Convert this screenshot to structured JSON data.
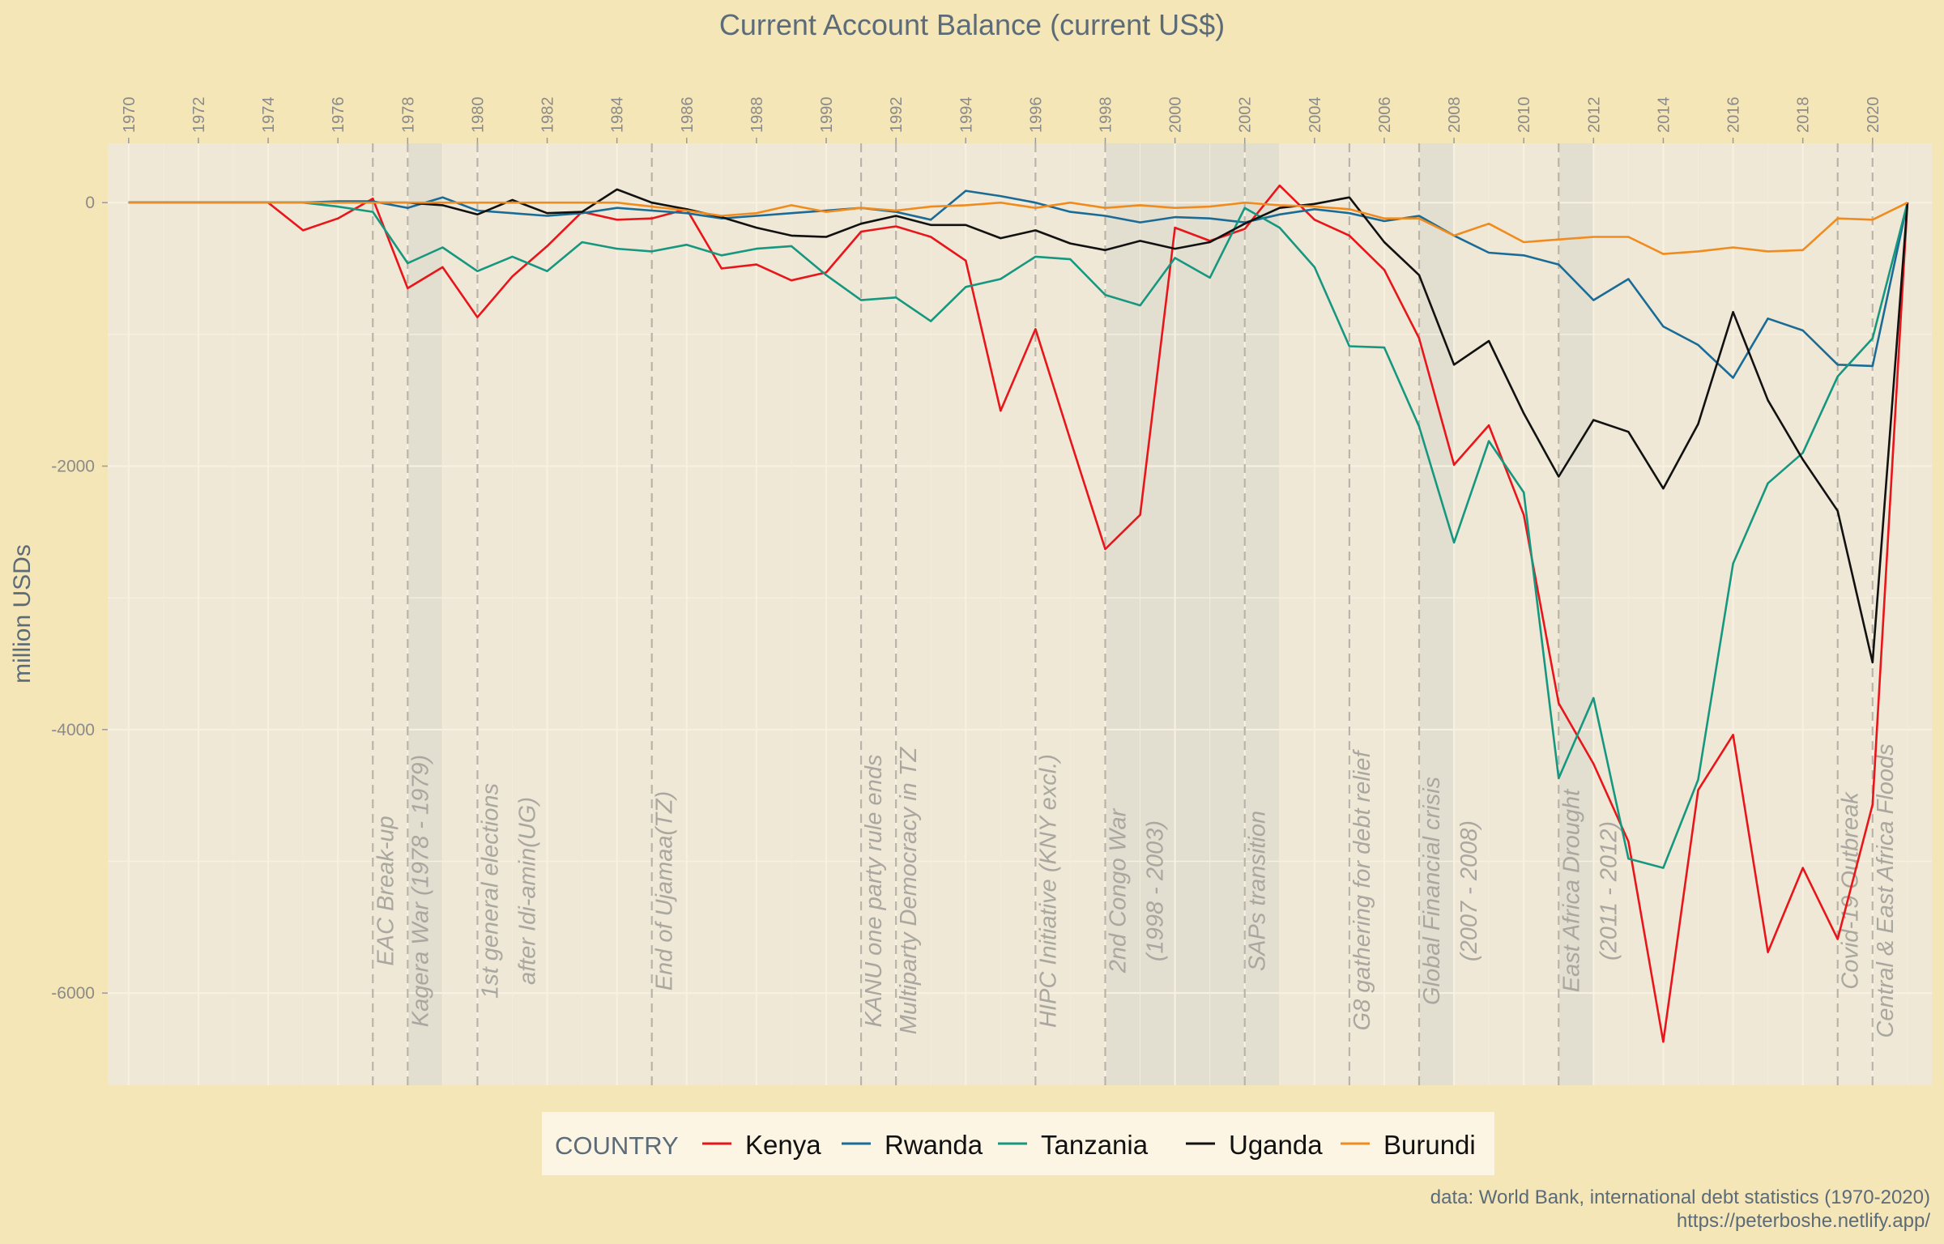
{
  "chart_data": {
    "type": "line",
    "title": "Current Account Balance (current US$)",
    "xlabel": "",
    "ylabel": "million USDs",
    "x_ticks": [
      1970,
      1972,
      1974,
      1976,
      1978,
      1980,
      1982,
      1984,
      1986,
      1988,
      1990,
      1992,
      1994,
      1996,
      1998,
      2000,
      2002,
      2004,
      2006,
      2008,
      2010,
      2012,
      2014,
      2016,
      2018,
      2020
    ],
    "y_ticks": [
      0,
      -2000,
      -4000,
      -6000
    ],
    "y_tick_labels": [
      "0",
      "-2000",
      "-4000",
      "-6000"
    ],
    "xlim": [
      1969.4,
      2021.7
    ],
    "ylim": [
      -6700,
      450
    ],
    "x_axis_position": "top",
    "grid": true,
    "legend": {
      "title": "COUNTRY",
      "position": "bottom"
    },
    "colors": {
      "Kenya": "#e8151b",
      "Rwanda": "#1a6b96",
      "Tanzania": "#16977f",
      "Uganda": "#111111",
      "Burundi": "#f08b1e"
    },
    "x": [
      1970,
      1971,
      1972,
      1973,
      1974,
      1975,
      1976,
      1977,
      1978,
      1979,
      1980,
      1981,
      1982,
      1983,
      1984,
      1985,
      1986,
      1987,
      1988,
      1989,
      1990,
      1991,
      1992,
      1993,
      1994,
      1995,
      1996,
      1997,
      1998,
      1999,
      2000,
      2001,
      2002,
      2003,
      2004,
      2005,
      2006,
      2007,
      2008,
      2009,
      2010,
      2011,
      2012,
      2013,
      2014,
      2015,
      2016,
      2017,
      2018,
      2019,
      2020,
      2021
    ],
    "series": [
      {
        "name": "Kenya",
        "values": [
          0,
          0,
          0,
          0,
          0,
          -210,
          -120,
          30,
          -650,
          -490,
          -870,
          -560,
          -330,
          -70,
          -130,
          -120,
          -50,
          -500,
          -470,
          -590,
          -530,
          -220,
          -180,
          -260,
          -440,
          -1580,
          -960,
          -1800,
          -2630,
          -2370,
          -190,
          -290,
          -200,
          130,
          -130,
          -250,
          -510,
          -1030,
          -1990,
          -1690,
          -2370,
          -3800,
          -4260,
          -4850,
          -6370,
          -4460,
          -4040,
          -5690,
          -5050,
          -5590,
          -4570,
          0
        ]
      },
      {
        "name": "Rwanda",
        "values": [
          0,
          0,
          0,
          0,
          0,
          0,
          10,
          10,
          -40,
          40,
          -60,
          -80,
          -100,
          -80,
          -40,
          -60,
          -80,
          -120,
          -100,
          -80,
          -60,
          -40,
          -70,
          -130,
          90,
          50,
          0,
          -70,
          -100,
          -150,
          -110,
          -120,
          -150,
          -90,
          -50,
          -80,
          -140,
          -100,
          -250,
          -380,
          -400,
          -470,
          -740,
          -580,
          -940,
          -1080,
          -1330,
          -880,
          -970,
          -1230,
          -1240,
          0
        ]
      },
      {
        "name": "Tanzania",
        "values": [
          0,
          0,
          0,
          0,
          0,
          0,
          -30,
          -70,
          -460,
          -340,
          -520,
          -410,
          -520,
          -300,
          -350,
          -370,
          -320,
          -400,
          -350,
          -330,
          -550,
          -740,
          -720,
          -900,
          -640,
          -580,
          -410,
          -430,
          -700,
          -780,
          -420,
          -570,
          -40,
          -190,
          -490,
          -1090,
          -1100,
          -1700,
          -2580,
          -1810,
          -2200,
          -4370,
          -3760,
          -4980,
          -5050,
          -4380,
          -2740,
          -2130,
          -1900,
          -1320,
          -1030,
          0
        ]
      },
      {
        "name": "Uganda",
        "values": [
          0,
          0,
          0,
          0,
          0,
          0,
          0,
          0,
          0,
          -20,
          -90,
          20,
          -80,
          -70,
          100,
          0,
          -50,
          -110,
          -190,
          -250,
          -260,
          -160,
          -100,
          -170,
          -170,
          -270,
          -210,
          -310,
          -360,
          -290,
          -350,
          -300,
          -160,
          -40,
          -10,
          40,
          -300,
          -550,
          -1230,
          -1050,
          -1600,
          -2080,
          -1650,
          -1740,
          -2170,
          -1680,
          -830,
          -1500,
          -1950,
          -2340,
          -3490,
          0
        ]
      },
      {
        "name": "Burundi",
        "values": [
          0,
          0,
          0,
          0,
          0,
          0,
          0,
          0,
          0,
          0,
          0,
          0,
          0,
          0,
          0,
          -30,
          -60,
          -100,
          -80,
          -20,
          -70,
          -40,
          -60,
          -30,
          -20,
          0,
          -40,
          0,
          -40,
          -20,
          -40,
          -30,
          0,
          -20,
          -30,
          -50,
          -120,
          -120,
          -250,
          -160,
          -300,
          -280,
          -260,
          -260,
          -390,
          -370,
          -340,
          -370,
          -360,
          -120,
          -130,
          0
        ]
      }
    ],
    "shaded_periods": [
      [
        1978,
        1979
      ],
      [
        1998,
        2003
      ],
      [
        2007,
        2008
      ],
      [
        2011,
        2012
      ]
    ],
    "event_lines": [
      1977,
      1978,
      1980,
      1985,
      1991,
      1992,
      1996,
      1998,
      2002,
      2005,
      2007,
      2011,
      2019,
      2020
    ],
    "annotations": [
      {
        "year": 1977,
        "lines": [
          "EAC Break-up"
        ]
      },
      {
        "year": 1978,
        "lines": [
          "Kagera War (1978 - 1979)"
        ]
      },
      {
        "year": 1980,
        "lines": [
          "1st general elections",
          "after Idi-amin(UG)"
        ]
      },
      {
        "year": 1985,
        "lines": [
          "End of Ujamaa(TZ)"
        ]
      },
      {
        "year": 1991,
        "lines": [
          "KANU one party rule ends"
        ]
      },
      {
        "year": 1992,
        "lines": [
          "Multiparty Democracy in TZ"
        ]
      },
      {
        "year": 1996,
        "lines": [
          "HIPC Initiative (KNY excl.)"
        ]
      },
      {
        "year": 1998,
        "lines": [
          "2nd Congo War",
          "(1998 - 2003)"
        ]
      },
      {
        "year": 2002,
        "lines": [
          "SAPs transition"
        ]
      },
      {
        "year": 2005,
        "lines": [
          "G8 gathering for debt relief"
        ]
      },
      {
        "year": 2007,
        "lines": [
          "Global Financial crisis",
          "(2007 - 2008)"
        ]
      },
      {
        "year": 2011,
        "lines": [
          "East Africa Drought",
          "(2011 - 2012)"
        ]
      },
      {
        "year": 2019,
        "lines": [
          "Covid-19 Outbreak"
        ]
      },
      {
        "year": 2020,
        "lines": [
          "Central & East Africa Floods"
        ]
      }
    ]
  },
  "caption": {
    "source": "data: World Bank, international debt statistics (1970-2020)",
    "url": "https://peterboshe.netlify.app/"
  }
}
